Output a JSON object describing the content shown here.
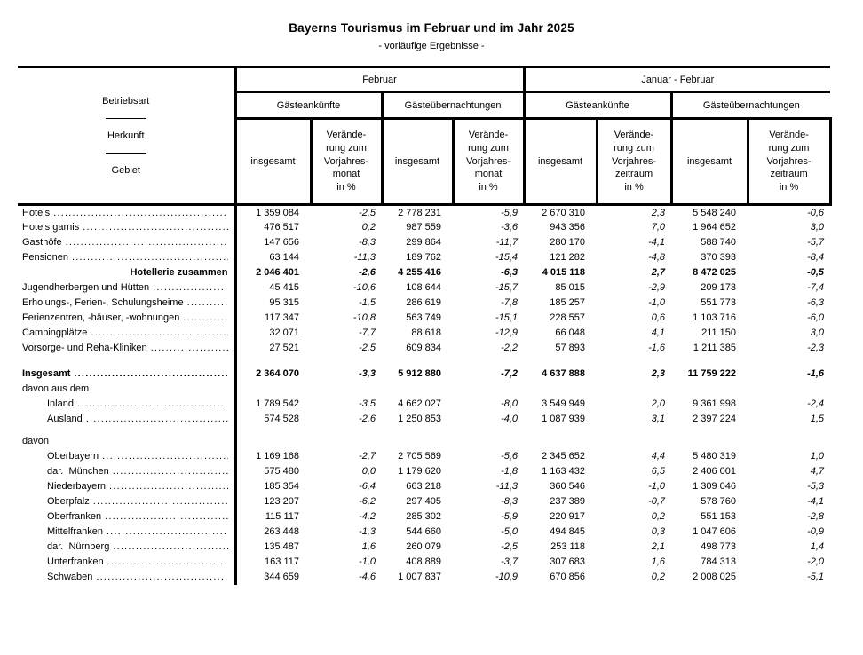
{
  "title": "Bayerns Tourismus im Februar und im Jahr 2025",
  "subtitle": "- vorläufige Ergebnisse -",
  "table": {
    "stub_header": {
      "line1": "Betriebsart",
      "line2": "Herkunft",
      "line3": "Gebiet"
    },
    "period_groups": [
      {
        "label": "Februar"
      },
      {
        "label": "Januar - Februar"
      }
    ],
    "measure_groups": [
      {
        "label": "Gästeankünfte"
      },
      {
        "label": "Gästeübernachtungen"
      },
      {
        "label": "Gästeankünfte"
      },
      {
        "label": "Gästeübernachtungen"
      }
    ],
    "col_headers": [
      "insgesamt",
      "Verände-\nrung zum\nVorjahres-\nmonat\nin %",
      "insgesamt",
      "Verände-\nrung zum\nVorjahres-\nmonat\nin %",
      "insgesamt",
      "Verände-\nrung zum\nVorjahres-\nzeitraum\nin %",
      "insgesamt",
      "Verände-\nrung zum\nVorjahres-\nzeitraum\nin %"
    ],
    "rows": [
      {
        "label": "Hotels",
        "indent": 0,
        "bold": false,
        "dots": true,
        "align": "left",
        "values": [
          "1 359 084",
          "-2,5",
          "2 778 231",
          "-5,9",
          "2 670 310",
          "2,3",
          "5 548 240",
          "-0,6"
        ]
      },
      {
        "label": "Hotels garnis",
        "indent": 0,
        "bold": false,
        "dots": true,
        "align": "left",
        "values": [
          "476 517",
          "0,2",
          "987 559",
          "-3,6",
          "943 356",
          "7,0",
          "1 964 652",
          "3,0"
        ]
      },
      {
        "label": "Gasthöfe",
        "indent": 0,
        "bold": false,
        "dots": true,
        "align": "left",
        "values": [
          "147 656",
          "-8,3",
          "299 864",
          "-11,7",
          "280 170",
          "-4,1",
          "588 740",
          "-5,7"
        ]
      },
      {
        "label": "Pensionen",
        "indent": 0,
        "bold": false,
        "dots": true,
        "align": "left",
        "values": [
          "63 144",
          "-11,3",
          "189 762",
          "-15,4",
          "121 282",
          "-4,8",
          "370 393",
          "-8,4"
        ]
      },
      {
        "label": "Hotellerie zusammen",
        "indent": 0,
        "bold": true,
        "dots": false,
        "align": "right",
        "values": [
          "2 046 401",
          "-2,6",
          "4 255 416",
          "-6,3",
          "4 015 118",
          "2,7",
          "8 472 025",
          "-0,5"
        ]
      },
      {
        "label": "Jugendherbergen und Hütten",
        "indent": 0,
        "bold": false,
        "dots": true,
        "align": "left",
        "values": [
          "45 415",
          "-10,6",
          "108 644",
          "-15,7",
          "85 015",
          "-2,9",
          "209 173",
          "-7,4"
        ]
      },
      {
        "label": "Erholungs-, Ferien-, Schulungsheime",
        "indent": 0,
        "bold": false,
        "dots": true,
        "align": "left",
        "values": [
          "95 315",
          "-1,5",
          "286 619",
          "-7,8",
          "185 257",
          "-1,0",
          "551 773",
          "-6,3"
        ]
      },
      {
        "label": "Ferienzentren, -häuser, -wohnungen",
        "indent": 0,
        "bold": false,
        "dots": true,
        "align": "left",
        "values": [
          "117 347",
          "-10,8",
          "563 749",
          "-15,1",
          "228 557",
          "0,6",
          "1 103 716",
          "-6,0"
        ]
      },
      {
        "label": "Campingplätze",
        "indent": 0,
        "bold": false,
        "dots": true,
        "align": "left",
        "values": [
          "32 071",
          "-7,7",
          "88 618",
          "-12,9",
          "66 048",
          "4,1",
          "211 150",
          "3,0"
        ]
      },
      {
        "label": "Vorsorge- und Reha-Kliniken",
        "indent": 0,
        "bold": false,
        "dots": true,
        "align": "left",
        "values": [
          "27 521",
          "-2,5",
          "609 834",
          "-2,2",
          "57 893",
          "-1,6",
          "1 211 385",
          "-2,3"
        ]
      },
      {
        "label": "Insgesamt",
        "indent": 0,
        "bold": true,
        "dots": true,
        "align": "left",
        "gap_before": 12,
        "values": [
          "2 364 070",
          "-3,3",
          "5 912 880",
          "-7,2",
          "4 637 888",
          "2,3",
          "11 759 222",
          "-1,6"
        ]
      },
      {
        "label": "davon aus dem",
        "indent": 0,
        "bold": false,
        "dots": false,
        "align": "left",
        "values": null
      },
      {
        "label": "Inland",
        "indent": 1,
        "bold": false,
        "dots": true,
        "align": "left",
        "values": [
          "1 789 542",
          "-3,5",
          "4 662 027",
          "-8,0",
          "3 549 949",
          "2,0",
          "9 361 998",
          "-2,4"
        ]
      },
      {
        "label": "Ausland",
        "indent": 1,
        "bold": false,
        "dots": true,
        "align": "left",
        "values": [
          "574 528",
          "-2,6",
          "1 250 853",
          "-4,0",
          "1 087 939",
          "3,1",
          "2 397 224",
          "1,5"
        ]
      },
      {
        "label": "davon",
        "indent": 0,
        "bold": false,
        "dots": false,
        "align": "left",
        "values": null,
        "gap_before": 8
      },
      {
        "label": "Oberbayern",
        "indent": 1,
        "bold": false,
        "dots": true,
        "align": "left",
        "values": [
          "1 169 168",
          "-2,7",
          "2 705 569",
          "-5,6",
          "2 345 652",
          "4,4",
          "5 480 319",
          "1,0"
        ]
      },
      {
        "label": "dar.  München",
        "indent": 1,
        "bold": false,
        "dots": true,
        "align": "left",
        "values": [
          "575 480",
          "0,0",
          "1 179 620",
          "-1,8",
          "1 163 432",
          "6,5",
          "2 406 001",
          "4,7"
        ]
      },
      {
        "label": "Niederbayern",
        "indent": 1,
        "bold": false,
        "dots": true,
        "align": "left",
        "values": [
          "185 354",
          "-6,4",
          "663 218",
          "-11,3",
          "360 546",
          "-1,0",
          "1 309 046",
          "-5,3"
        ]
      },
      {
        "label": "Oberpfalz",
        "indent": 1,
        "bold": false,
        "dots": true,
        "align": "left",
        "values": [
          "123 207",
          "-6,2",
          "297 405",
          "-8,3",
          "237 389",
          "-0,7",
          "578 760",
          "-4,1"
        ]
      },
      {
        "label": "Oberfranken",
        "indent": 1,
        "bold": false,
        "dots": true,
        "align": "left",
        "values": [
          "115 117",
          "-4,2",
          "285 302",
          "-5,9",
          "220 917",
          "0,2",
          "551 153",
          "-2,8"
        ]
      },
      {
        "label": "Mittelfranken",
        "indent": 1,
        "bold": false,
        "dots": true,
        "align": "left",
        "values": [
          "263 448",
          "-1,3",
          "544 660",
          "-5,0",
          "494 845",
          "0,3",
          "1 047 606",
          "-0,9"
        ]
      },
      {
        "label": "dar.  Nürnberg",
        "indent": 1,
        "bold": false,
        "dots": true,
        "align": "left",
        "values": [
          "135 487",
          "1,6",
          "260 079",
          "-2,5",
          "253 118",
          "2,1",
          "498 773",
          "1,4"
        ]
      },
      {
        "label": "Unterfranken",
        "indent": 1,
        "bold": false,
        "dots": true,
        "align": "left",
        "values": [
          "163 117",
          "-1,0",
          "408 889",
          "-3,7",
          "307 683",
          "1,6",
          "784 313",
          "-2,0"
        ]
      },
      {
        "label": "Schwaben",
        "indent": 1,
        "bold": false,
        "dots": true,
        "align": "left",
        "values": [
          "344 659",
          "-4,6",
          "1 007 837",
          "-10,9",
          "670 856",
          "0,2",
          "2 008 025",
          "-5,1"
        ]
      }
    ]
  }
}
